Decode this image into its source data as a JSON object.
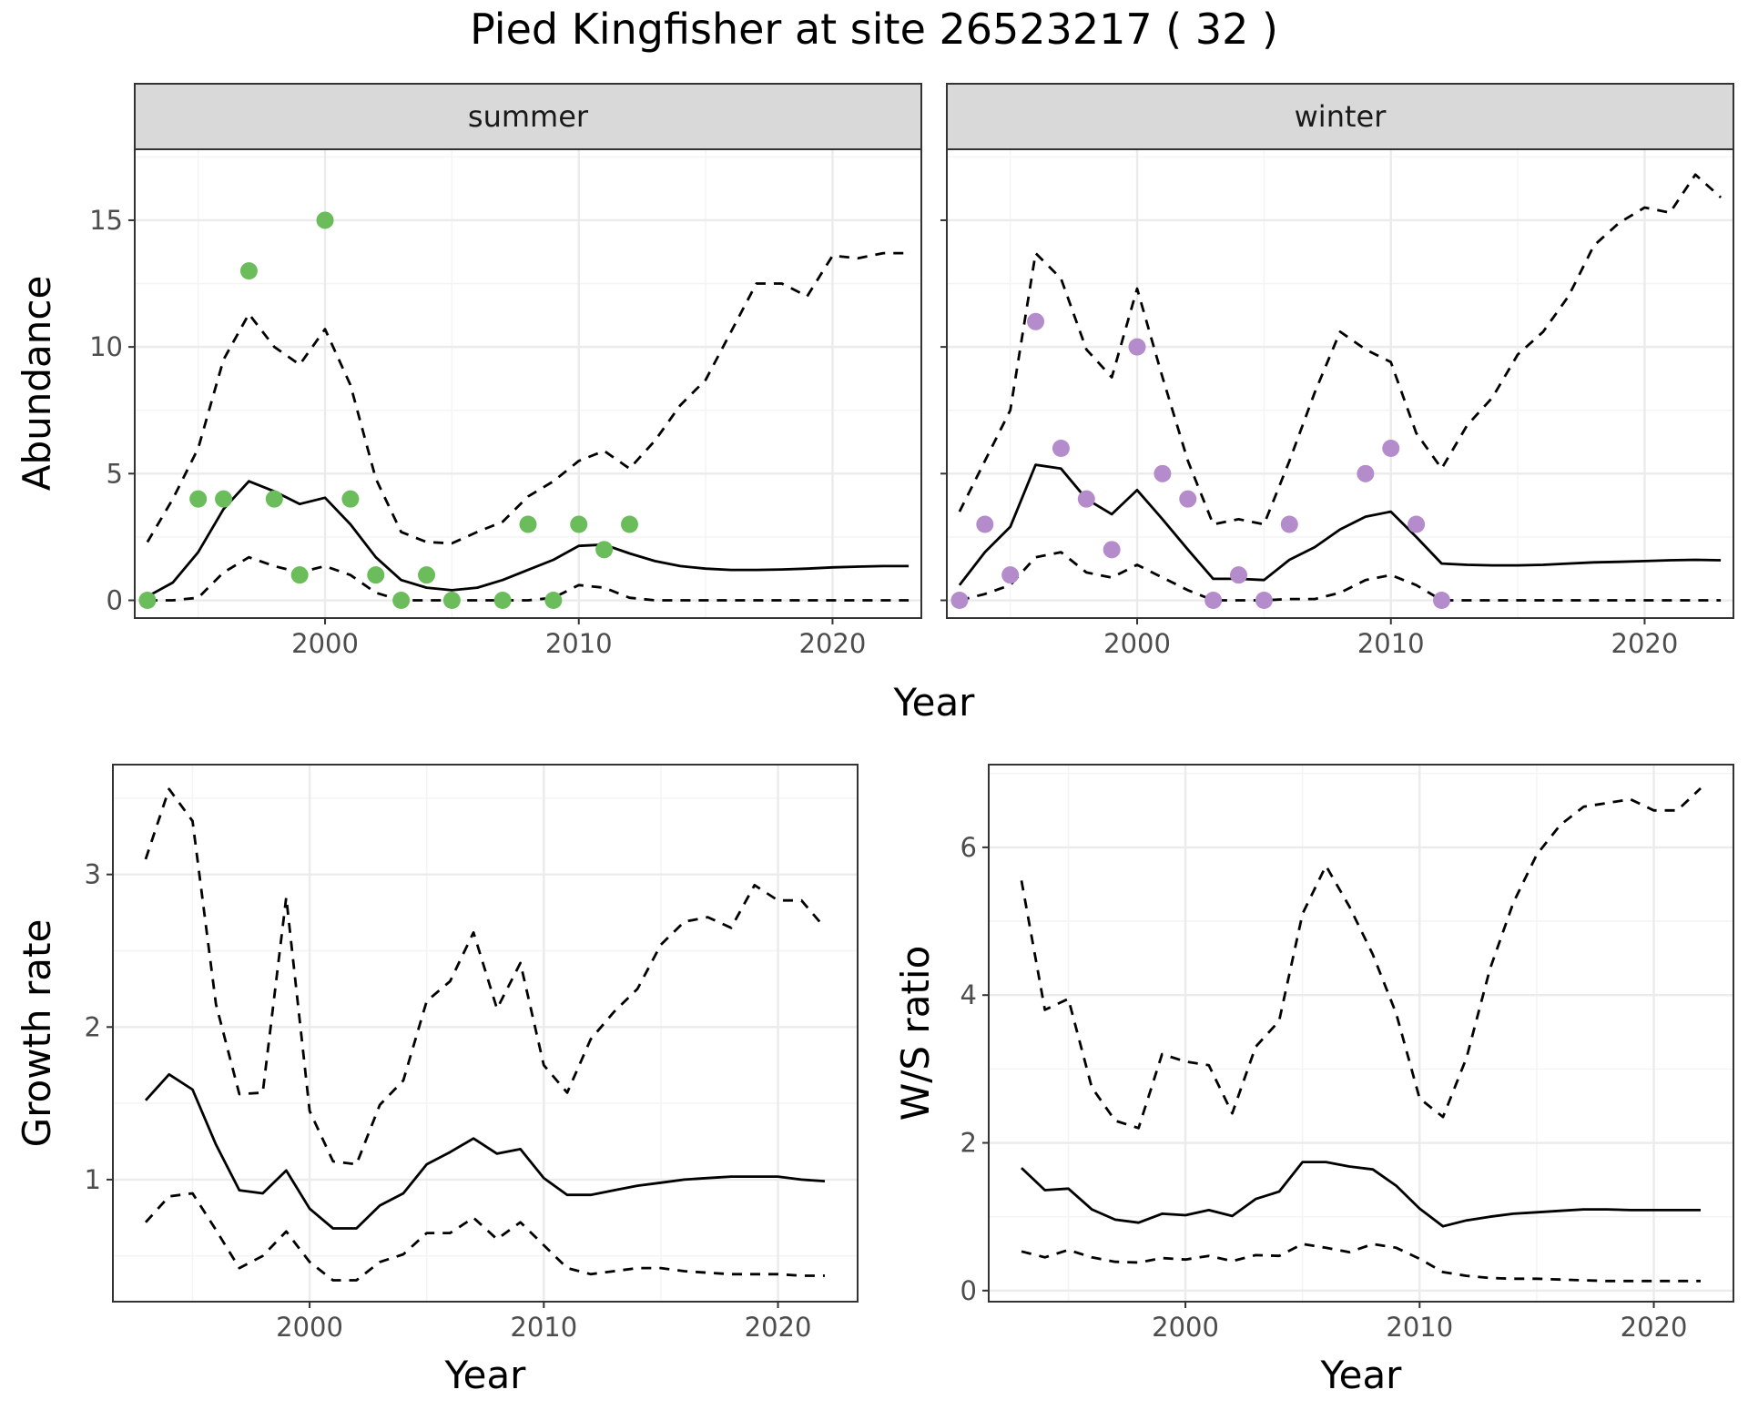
{
  "title": "Pied Kingfisher at site 26523217 ( 32 )",
  "colors": {
    "summer_points": "#6BBD5B",
    "winter_points": "#B48BCB",
    "line": "#000000",
    "grid_major": "#EBEBEB",
    "grid_minor": "#F4F4F4",
    "strip_fill": "#D9D9D9",
    "panel_border": "#333333"
  },
  "chart_data": [
    {
      "type": "line",
      "id": "abundance",
      "facets": [
        "summer",
        "winter"
      ],
      "xlabel": "Year",
      "ylabel": "Abundance",
      "xlim": [
        1992.5,
        2023.5
      ],
      "ylim": [
        -0.7,
        17.8
      ],
      "x_ticks": [
        2000,
        2010,
        2020
      ],
      "y_ticks": [
        0,
        5,
        10,
        15
      ],
      "grid": true,
      "panels": [
        {
          "facet": "summer",
          "points": {
            "x": [
              1993,
              1995,
              1996,
              1997,
              1998,
              1999,
              2000,
              2001,
              2002,
              2003,
              2004,
              2005,
              2007,
              2008,
              2009,
              2010,
              2011,
              2012
            ],
            "y": [
              0,
              4,
              4,
              13,
              4,
              1,
              15,
              4,
              1,
              0,
              1,
              0,
              0,
              3,
              0,
              3,
              2,
              3
            ]
          },
          "line": {
            "x": [
              1993,
              1994,
              1995,
              1996,
              1997,
              1998,
              1999,
              2000,
              2001,
              2002,
              2003,
              2004,
              2005,
              2006,
              2007,
              2008,
              2009,
              2010,
              2011,
              2012,
              2013,
              2014,
              2015,
              2016,
              2017,
              2018,
              2019,
              2020,
              2021,
              2022,
              2023
            ],
            "y": [
              0.15,
              0.7,
              1.9,
              3.6,
              4.7,
              4.3,
              3.8,
              4.05,
              3.0,
              1.7,
              0.8,
              0.5,
              0.4,
              0.5,
              0.8,
              1.2,
              1.6,
              2.15,
              2.2,
              1.85,
              1.55,
              1.35,
              1.25,
              1.2,
              1.2,
              1.22,
              1.25,
              1.3,
              1.33,
              1.35,
              1.35
            ]
          },
          "upper": {
            "x": [
              1993,
              1994,
              1995,
              1996,
              1997,
              1998,
              1999,
              2000,
              2001,
              2002,
              2003,
              2004,
              2005,
              2006,
              2007,
              2008,
              2009,
              2010,
              2011,
              2012,
              2013,
              2014,
              2015,
              2016,
              2017,
              2018,
              2019,
              2020,
              2021,
              2022,
              2023
            ],
            "y": [
              2.3,
              4.0,
              6.0,
              9.5,
              11.3,
              10.0,
              9.3,
              10.7,
              8.5,
              4.8,
              2.7,
              2.3,
              2.25,
              2.7,
              3.1,
              4.1,
              4.7,
              5.5,
              5.9,
              5.2,
              6.3,
              7.7,
              8.7,
              10.6,
              12.5,
              12.5,
              12.0,
              13.6,
              13.5,
              13.7,
              13.7
            ]
          },
          "lower": {
            "x": [
              1993,
              1994,
              1995,
              1996,
              1997,
              1998,
              1999,
              2000,
              2001,
              2002,
              2003,
              2004,
              2005,
              2006,
              2007,
              2008,
              2009,
              2010,
              2011,
              2012,
              2013,
              2014,
              2015,
              2016,
              2017,
              2018,
              2019,
              2020,
              2021,
              2022,
              2023
            ],
            "y": [
              0.0,
              0.0,
              0.1,
              1.1,
              1.7,
              1.35,
              1.1,
              1.35,
              1.0,
              0.3,
              0.0,
              0.0,
              0.0,
              0.0,
              0.0,
              0.0,
              0.1,
              0.6,
              0.5,
              0.1,
              0.0,
              0.0,
              0.0,
              0.0,
              0.0,
              0.0,
              0.0,
              0.0,
              0.0,
              0.0,
              0.0
            ]
          }
        },
        {
          "facet": "winter",
          "points": {
            "x": [
              1993,
              1994,
              1995,
              1996,
              1997,
              1998,
              1999,
              2000,
              2001,
              2002,
              2003,
              2004,
              2005,
              2006,
              2009,
              2010,
              2011,
              2012
            ],
            "y": [
              0,
              3,
              1,
              11,
              6,
              4,
              2,
              10,
              5,
              4,
              0,
              1,
              0,
              3,
              5,
              6,
              3,
              0
            ]
          },
          "line": {
            "x": [
              1993,
              1994,
              1995,
              1996,
              1997,
              1998,
              1999,
              2000,
              2001,
              2002,
              2003,
              2004,
              2005,
              2006,
              2007,
              2008,
              2009,
              2010,
              2011,
              2012,
              2013,
              2014,
              2015,
              2016,
              2017,
              2018,
              2019,
              2020,
              2021,
              2022,
              2023
            ],
            "y": [
              0.6,
              1.9,
              2.9,
              5.35,
              5.2,
              4.0,
              3.4,
              4.35,
              3.2,
              2.0,
              0.85,
              0.85,
              0.8,
              1.6,
              2.1,
              2.8,
              3.3,
              3.5,
              2.5,
              1.45,
              1.4,
              1.38,
              1.38,
              1.4,
              1.45,
              1.5,
              1.52,
              1.55,
              1.58,
              1.6,
              1.58
            ]
          },
          "upper": {
            "x": [
              1993,
              1994,
              1995,
              1996,
              1997,
              1998,
              1999,
              2000,
              2001,
              2002,
              2003,
              2004,
              2005,
              2006,
              2007,
              2008,
              2009,
              2010,
              2011,
              2012,
              2013,
              2014,
              2015,
              2016,
              2017,
              2018,
              2019,
              2020,
              2021,
              2022,
              2023
            ],
            "y": [
              3.5,
              5.5,
              7.5,
              13.7,
              12.7,
              9.9,
              8.8,
              12.3,
              8.8,
              5.5,
              3.0,
              3.2,
              3.0,
              5.5,
              8.2,
              10.6,
              9.9,
              9.4,
              6.6,
              5.2,
              6.9,
              8.0,
              9.7,
              10.6,
              12.0,
              14.0,
              14.9,
              15.5,
              15.3,
              16.8,
              15.9
            ]
          },
          "lower": {
            "x": [
              1993,
              1994,
              1995,
              1996,
              1997,
              1998,
              1999,
              2000,
              2001,
              2002,
              2003,
              2004,
              2005,
              2006,
              2007,
              2008,
              2009,
              2010,
              2011,
              2012,
              2013,
              2014,
              2015,
              2016,
              2017,
              2018,
              2019,
              2020,
              2021,
              2022,
              2023
            ],
            "y": [
              0.0,
              0.25,
              0.6,
              1.7,
              1.9,
              1.1,
              0.9,
              1.4,
              0.9,
              0.4,
              0.0,
              0.0,
              0.0,
              0.05,
              0.05,
              0.3,
              0.8,
              1.0,
              0.6,
              0.0,
              0.0,
              0.0,
              0.0,
              0.0,
              0.0,
              0.0,
              0.0,
              0.0,
              0.0,
              0.0,
              0.0
            ]
          }
        }
      ]
    },
    {
      "type": "line",
      "id": "growth",
      "xlabel": "Year",
      "ylabel": "Growth rate",
      "xlim": [
        1991.6,
        2023.4
      ],
      "ylim": [
        0.2,
        3.72
      ],
      "x_ticks": [
        2000,
        2010,
        2020
      ],
      "y_ticks": [
        1,
        2,
        3
      ],
      "grid": true,
      "line": {
        "x": [
          1993,
          1994,
          1995,
          1996,
          1997,
          1998,
          1999,
          2000,
          2001,
          2002,
          2003,
          2004,
          2005,
          2006,
          2007,
          2008,
          2009,
          2010,
          2011,
          2012,
          2013,
          2014,
          2015,
          2016,
          2017,
          2018,
          2019,
          2020,
          2021,
          2022
        ],
        "y": [
          1.52,
          1.69,
          1.59,
          1.23,
          0.93,
          0.91,
          1.06,
          0.81,
          0.68,
          0.68,
          0.83,
          0.91,
          1.1,
          1.18,
          1.27,
          1.17,
          1.2,
          1.01,
          0.9,
          0.9,
          0.93,
          0.96,
          0.98,
          1.0,
          1.01,
          1.02,
          1.02,
          1.02,
          1.0,
          0.99
        ]
      },
      "upper": {
        "x": [
          1993,
          1994,
          1995,
          1996,
          1997,
          1998,
          1999,
          2000,
          2001,
          2002,
          2003,
          2004,
          2005,
          2006,
          2007,
          2008,
          2009,
          2010,
          2011,
          2012,
          2013,
          2014,
          2015,
          2016,
          2017,
          2018,
          2019,
          2020,
          2021,
          2022
        ],
        "y": [
          3.1,
          3.56,
          3.35,
          2.15,
          1.56,
          1.57,
          2.85,
          1.45,
          1.12,
          1.1,
          1.49,
          1.65,
          2.17,
          2.3,
          2.62,
          2.12,
          2.42,
          1.75,
          1.57,
          1.92,
          2.1,
          2.25,
          2.54,
          2.69,
          2.72,
          2.65,
          2.93,
          2.83,
          2.83,
          2.65
        ]
      },
      "lower": {
        "x": [
          1993,
          1994,
          1995,
          1996,
          1997,
          1998,
          1999,
          2000,
          2001,
          2002,
          2003,
          2004,
          2005,
          2006,
          2007,
          2008,
          2009,
          2010,
          2011,
          2012,
          2013,
          2014,
          2015,
          2016,
          2017,
          2018,
          2019,
          2020,
          2021,
          2022
        ],
        "y": [
          0.72,
          0.89,
          0.91,
          0.67,
          0.42,
          0.5,
          0.66,
          0.46,
          0.34,
          0.34,
          0.46,
          0.51,
          0.65,
          0.65,
          0.75,
          0.61,
          0.72,
          0.57,
          0.42,
          0.38,
          0.4,
          0.42,
          0.42,
          0.4,
          0.39,
          0.38,
          0.38,
          0.38,
          0.37,
          0.37
        ]
      }
    },
    {
      "type": "line",
      "id": "ratio",
      "xlabel": "Year",
      "ylabel": "W/S ratio",
      "xlim": [
        1991.6,
        2023.4
      ],
      "ylim": [
        -0.15,
        7.12
      ],
      "x_ticks": [
        2000,
        2010,
        2020
      ],
      "y_ticks": [
        0,
        2,
        4,
        6
      ],
      "grid": true,
      "line": {
        "x": [
          1993,
          1994,
          1995,
          1996,
          1997,
          1998,
          1999,
          2000,
          2001,
          2002,
          2003,
          2004,
          2005,
          2006,
          2007,
          2008,
          2009,
          2010,
          2011,
          2012,
          2013,
          2014,
          2015,
          2016,
          2017,
          2018,
          2019,
          2020,
          2021,
          2022
        ],
        "y": [
          1.66,
          1.36,
          1.38,
          1.1,
          0.96,
          0.92,
          1.04,
          1.02,
          1.09,
          1.01,
          1.24,
          1.34,
          1.74,
          1.74,
          1.68,
          1.64,
          1.42,
          1.11,
          0.87,
          0.95,
          1.0,
          1.04,
          1.06,
          1.08,
          1.1,
          1.1,
          1.09,
          1.09,
          1.09,
          1.09
        ]
      },
      "upper": {
        "x": [
          1993,
          1994,
          1995,
          1996,
          1997,
          1998,
          1999,
          2000,
          2001,
          2002,
          2003,
          2004,
          2005,
          2006,
          2007,
          2008,
          2009,
          2010,
          2011,
          2012,
          2013,
          2014,
          2015,
          2016,
          2017,
          2018,
          2019,
          2020,
          2021,
          2022
        ],
        "y": [
          5.55,
          3.8,
          3.95,
          2.75,
          2.3,
          2.2,
          3.2,
          3.1,
          3.05,
          2.4,
          3.3,
          3.65,
          5.1,
          5.75,
          5.2,
          4.55,
          3.75,
          2.6,
          2.35,
          3.15,
          4.35,
          5.25,
          5.9,
          6.3,
          6.55,
          6.6,
          6.65,
          6.5,
          6.5,
          6.8
        ]
      },
      "lower": {
        "x": [
          1993,
          1994,
          1995,
          1996,
          1997,
          1998,
          1999,
          2000,
          2001,
          2002,
          2003,
          2004,
          2005,
          2006,
          2007,
          2008,
          2009,
          2010,
          2011,
          2012,
          2013,
          2014,
          2015,
          2016,
          2017,
          2018,
          2019,
          2020,
          2021,
          2022
        ],
        "y": [
          0.53,
          0.45,
          0.55,
          0.45,
          0.39,
          0.38,
          0.44,
          0.42,
          0.47,
          0.4,
          0.48,
          0.47,
          0.63,
          0.58,
          0.52,
          0.63,
          0.58,
          0.43,
          0.25,
          0.2,
          0.17,
          0.16,
          0.16,
          0.15,
          0.14,
          0.13,
          0.13,
          0.13,
          0.13,
          0.13
        ]
      }
    }
  ]
}
